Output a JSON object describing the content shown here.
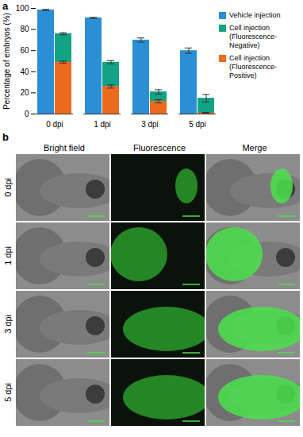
{
  "chart_data": {
    "type": "bar",
    "annotations": [
      "a"
    ],
    "categories": [
      "0 dpi",
      "1 dpi",
      "3 dpi",
      "5 dpi"
    ],
    "y_label": "Percentage of embryos (%)",
    "ylim": [
      0,
      100
    ],
    "yticks": [
      0,
      20,
      40,
      60,
      80,
      100
    ],
    "stacked": false,
    "grid": false,
    "legend": "right",
    "series": [
      {
        "name": "Vehicle injection",
        "color": "#2a8fd4",
        "values": [
          98.5,
          91,
          70,
          60
        ],
        "errors": [
          0.5,
          0.5,
          2,
          2.5
        ]
      },
      {
        "name": "Cell injection (Fluorescence-Negative)",
        "color": "#11a383",
        "values": [
          76,
          49,
          21,
          15
        ],
        "errors": [
          1,
          1.5,
          2,
          3.5
        ]
      },
      {
        "name": "Cell injection (Fluorescence-Positive)",
        "color": "#ec6a1e",
        "values": [
          49,
          26,
          12,
          1
        ],
        "errors": [
          1,
          1.5,
          1.5,
          0.5
        ]
      }
    ]
  },
  "panel_b": {
    "label": "b",
    "columns": [
      "Bright field",
      "Fluorescence",
      "Merge"
    ],
    "rows": [
      "0 dpi",
      "1 dpi",
      "3 dpi",
      "5 dpi"
    ]
  }
}
